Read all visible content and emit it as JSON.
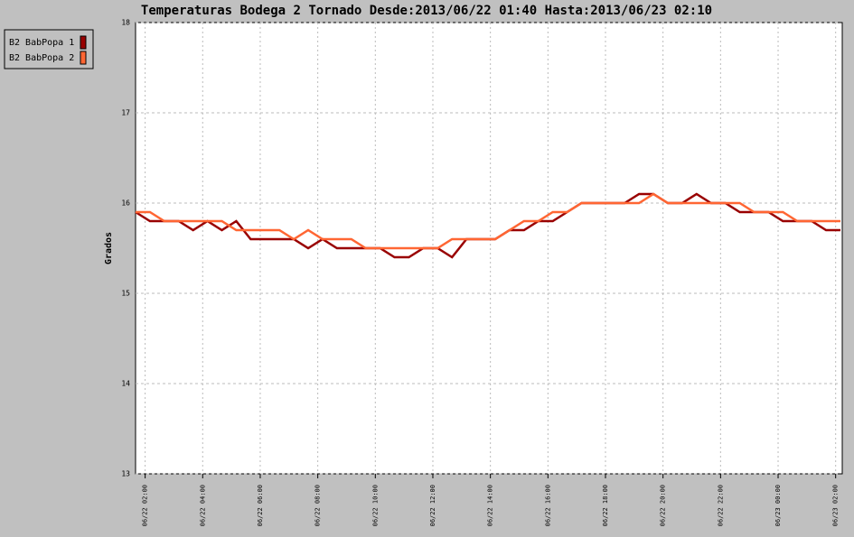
{
  "chart_data": {
    "type": "line",
    "title": "Temperaturas Bodega 2 Tornado Desde:2013/06/22 01:40 Hasta:2013/06/23 02:10",
    "y_label": "Grados",
    "x": [
      "06/22 01:40",
      "06/22 02:10",
      "06/22 02:40",
      "06/22 03:10",
      "06/22 03:40",
      "06/22 04:10",
      "06/22 04:40",
      "06/22 05:10",
      "06/22 05:40",
      "06/22 06:10",
      "06/22 06:40",
      "06/22 07:10",
      "06/22 07:40",
      "06/22 08:10",
      "06/22 08:40",
      "06/22 09:10",
      "06/22 09:40",
      "06/22 10:10",
      "06/22 10:40",
      "06/22 11:10",
      "06/22 11:40",
      "06/22 12:10",
      "06/22 12:40",
      "06/22 13:10",
      "06/22 13:40",
      "06/22 14:10",
      "06/22 14:40",
      "06/22 15:10",
      "06/22 15:40",
      "06/22 16:10",
      "06/22 16:40",
      "06/22 17:10",
      "06/22 17:40",
      "06/22 18:10",
      "06/22 18:40",
      "06/22 19:10",
      "06/22 19:40",
      "06/22 20:10",
      "06/22 20:40",
      "06/22 21:10",
      "06/22 21:40",
      "06/22 22:10",
      "06/22 22:40",
      "06/22 23:10",
      "06/22 23:40",
      "06/23 00:10",
      "06/23 00:40",
      "06/23 01:10",
      "06/23 01:40",
      "06/23 02:10"
    ],
    "series": [
      {
        "name": "B2 BabPopa 1",
        "color": "#990000",
        "values": [
          15.9,
          15.8,
          15.8,
          15.8,
          15.7,
          15.8,
          15.7,
          15.8,
          15.6,
          15.6,
          15.6,
          15.6,
          15.5,
          15.6,
          15.5,
          15.5,
          15.5,
          15.5,
          15.4,
          15.4,
          15.5,
          15.5,
          15.4,
          15.6,
          15.6,
          15.6,
          15.7,
          15.7,
          15.8,
          15.8,
          15.9,
          16.0,
          16.0,
          16.0,
          16.0,
          16.1,
          16.1,
          16.0,
          16.0,
          16.1,
          16.0,
          16.0,
          15.9,
          15.9,
          15.9,
          15.8,
          15.8,
          15.8,
          15.7,
          15.7
        ]
      },
      {
        "name": "B2 BabPopa 2",
        "color": "#ff6633",
        "values": [
          15.9,
          15.9,
          15.8,
          15.8,
          15.8,
          15.8,
          15.8,
          15.7,
          15.7,
          15.7,
          15.7,
          15.6,
          15.7,
          15.6,
          15.6,
          15.6,
          15.5,
          15.5,
          15.5,
          15.5,
          15.5,
          15.5,
          15.6,
          15.6,
          15.6,
          15.6,
          15.7,
          15.8,
          15.8,
          15.9,
          15.9,
          16.0,
          16.0,
          16.0,
          16.0,
          16.0,
          16.1,
          16.0,
          16.0,
          16.0,
          16.0,
          16.0,
          16.0,
          15.9,
          15.9,
          15.9,
          15.8,
          15.8,
          15.8,
          15.8
        ]
      }
    ],
    "xlim": [
      "06/22 01:40",
      "06/23 02:10"
    ],
    "xticks": [
      "06/22 02:00",
      "06/22 04:00",
      "06/22 06:00",
      "06/22 08:00",
      "06/22 10:00",
      "06/22 12:00",
      "06/22 14:00",
      "06/22 16:00",
      "06/22 18:00",
      "06/22 20:00",
      "06/22 22:00",
      "06/23 00:00",
      "06/23 02:00"
    ],
    "ylim": [
      13,
      18
    ],
    "yticks": [
      13,
      14,
      15,
      16,
      17,
      18
    ],
    "grid": true,
    "legend": "upper-left"
  }
}
